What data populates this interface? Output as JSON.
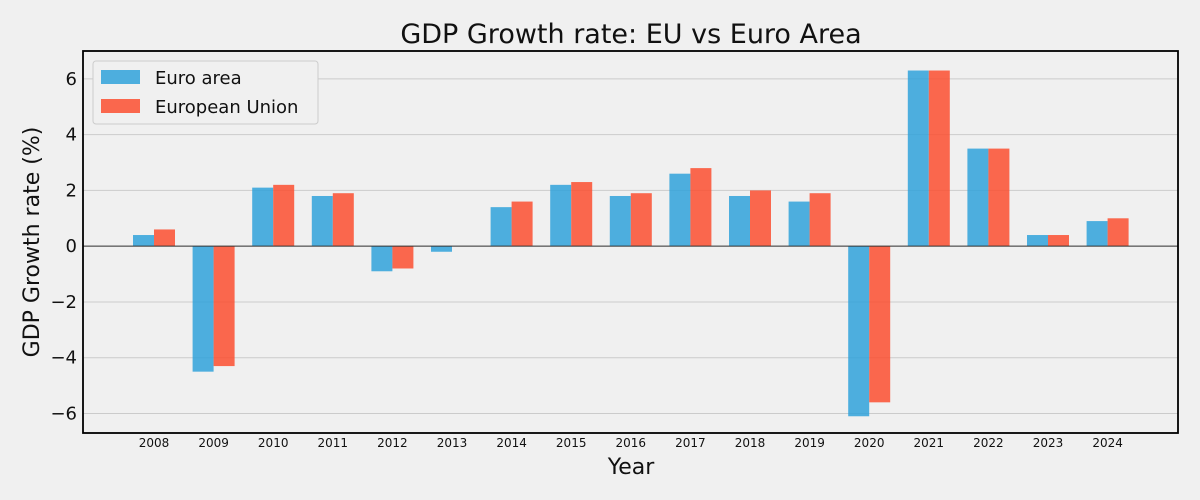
{
  "chart_data": {
    "type": "bar",
    "title": "GDP Growth rate: EU vs Euro Area",
    "xlabel": "Year",
    "ylabel": "GDP Growth rate (%)",
    "categories": [
      "2008",
      "2009",
      "2010",
      "2011",
      "2012",
      "2013",
      "2014",
      "2015",
      "2016",
      "2017",
      "2018",
      "2019",
      "2020",
      "2021",
      "2022",
      "2023",
      "2024"
    ],
    "series": [
      {
        "name": "Euro area",
        "color": "#30a2da",
        "values": [
          0.4,
          -4.5,
          2.1,
          1.8,
          -0.9,
          -0.2,
          1.4,
          2.2,
          1.8,
          2.6,
          1.8,
          1.6,
          -6.1,
          6.3,
          3.5,
          0.4,
          0.9
        ]
      },
      {
        "name": "European Union",
        "color": "#fc4f30",
        "values": [
          0.6,
          -4.3,
          2.2,
          1.9,
          -0.8,
          0.0,
          1.6,
          2.3,
          1.9,
          2.8,
          2.0,
          1.9,
          -5.6,
          6.3,
          3.5,
          0.4,
          1.0
        ]
      }
    ],
    "ylim": [
      -6.7,
      7.0
    ],
    "yticks": [
      {
        "value": -6,
        "label": "−6"
      },
      {
        "value": -4,
        "label": "−4"
      },
      {
        "value": -2,
        "label": "−2"
      },
      {
        "value": 0,
        "label": "0"
      },
      {
        "value": 2,
        "label": "2"
      },
      {
        "value": 4,
        "label": "4"
      },
      {
        "value": 6,
        "label": "6"
      }
    ],
    "grid": true,
    "legend_position": "top-left"
  }
}
